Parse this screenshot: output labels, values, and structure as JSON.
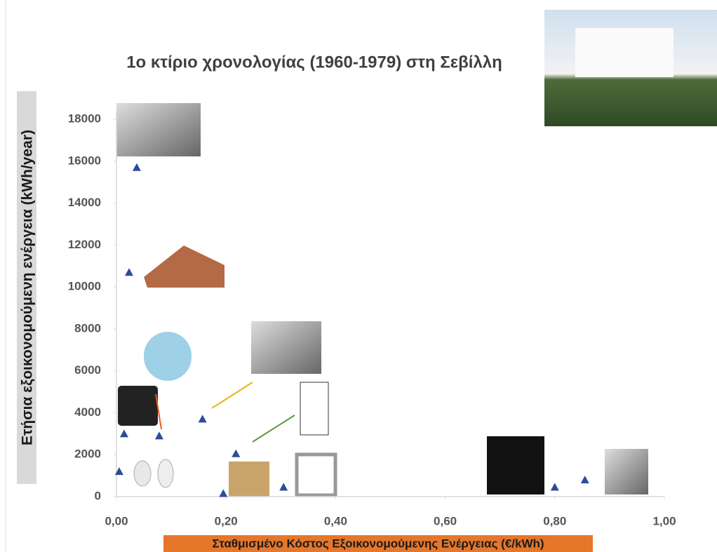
{
  "chart_data": {
    "type": "scatter",
    "title": "1ο κτίριο χρονολογίας (1960-1979) στη Σεβίλλη",
    "x_label": "Σταθμισμένο Κόστος Εξοικονομούμενης Ενέργειας (€/kWh)",
    "y_label": "Ετήσια εξοικονομούμενη ενέργεια (kWh/year)",
    "series": [
      {
        "color": "#2b4c9b",
        "x": [
          0.005,
          0.014,
          0.037,
          0.023,
          0.078,
          0.157,
          0.195,
          0.218,
          0.305,
          0.8,
          0.855
        ],
        "values": [
          1200,
          3000,
          15700,
          10700,
          2900,
          3700,
          150,
          2050,
          450,
          450,
          800
        ]
      }
    ],
    "xlim": [
      0,
      1
    ],
    "xticks": [
      {
        "value": 0,
        "label": "0,00"
      },
      {
        "value": 0.2,
        "label": "0,20"
      },
      {
        "value": 0.4,
        "label": "0,40"
      },
      {
        "value": 0.6,
        "label": "0,60"
      },
      {
        "value": 0.8,
        "label": "0,80"
      },
      {
        "value": 1,
        "label": "1,00"
      }
    ],
    "ylim": [
      0,
      18000
    ],
    "yticks": [
      0,
      2000,
      4000,
      6000,
      8000,
      10000,
      12000,
      14000,
      16000,
      18000
    ]
  }
}
